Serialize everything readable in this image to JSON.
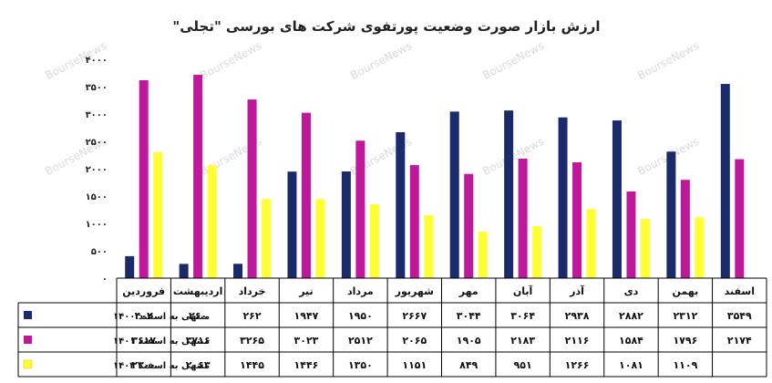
{
  "chart_data": {
    "type": "bar",
    "title": "ارزش بازار صورت وضعیت پورتفوی شرکت های بورسی \"تجلی\"",
    "watermark": "BourseNews",
    "y_ticks": [
      "۰",
      "۵۰۰",
      "۱۰۰۰",
      "۱۵۰۰",
      "۲۰۰۰",
      "۲۵۰۰",
      "۳۰۰۰",
      "۳۵۰۰",
      "۴۰۰۰"
    ],
    "ylim": [
      0,
      4000
    ],
    "grid": false,
    "legend_position": "table-left",
    "categories": [
      "فروردین",
      "اردیبهشت",
      "خرداد",
      "تیر",
      "مرداد",
      "شهریور",
      "مهر",
      "آبان",
      "آذر",
      "دی",
      "بهمن",
      "اسفند"
    ],
    "series": [
      {
        "name": "منتهی به اسفند ۱۴۰۰",
        "color": "#1b2a6b",
        "values": [
          402,
          260,
          262,
          1947,
          1950,
          2667,
          3044,
          3064,
          2938,
          2882,
          2312,
          3549
        ],
        "labels": [
          "۴۰۲",
          "۲۶۰",
          "۲۶۲",
          "۱۹۴۷",
          "۱۹۵۰",
          "۲۶۶۷",
          "۳۰۴۴",
          "۳۰۶۴",
          "۲۹۳۸",
          "۲۸۸۲",
          "۲۳۱۲",
          "۳۵۴۹"
        ]
      },
      {
        "name": "منتهی به اسفند ۱۴۰۱",
        "color": "#c0189a",
        "values": [
          3617,
          3716,
          3265,
          3023,
          2512,
          2065,
          1905,
          2183,
          2116,
          1584,
          1796,
          2174
        ],
        "labels": [
          "۳۶۱۷",
          "۳۷۱۶",
          "۳۲۶۵",
          "۳۰۲۳",
          "۲۵۱۲",
          "۲۰۶۵",
          "۱۹۰۵",
          "۲۱۸۳",
          "۲۱۱۶",
          "۱۵۸۴",
          "۱۷۹۶",
          "۲۱۷۴"
        ]
      },
      {
        "name": "منتهی به اسفند ۱۴۰۲",
        "color": "#ffff33",
        "values": [
          2300,
          2063,
          1445,
          1446,
          1350,
          1151,
          849,
          951,
          1266,
          1081,
          1109,
          null
        ],
        "labels": [
          "۲۳۰۰",
          "۲۰۶۳",
          "۱۴۴۵",
          "۱۴۴۶",
          "۱۳۵۰",
          "۱۱۵۱",
          "۸۴۹",
          "۹۵۱",
          "۱۲۶۶",
          "۱۰۸۱",
          "۱۱۰۹",
          ""
        ]
      }
    ]
  }
}
